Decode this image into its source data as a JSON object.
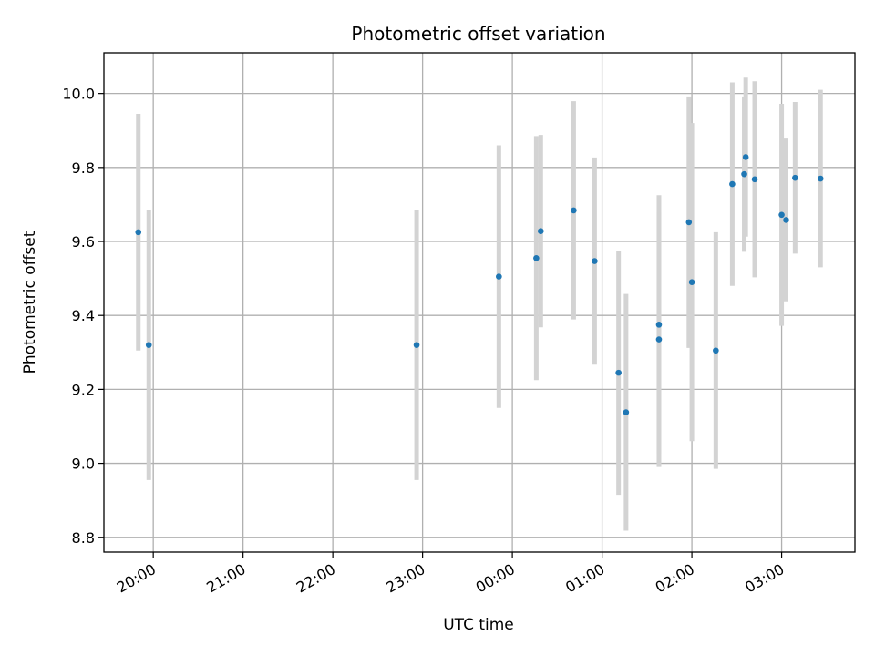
{
  "chart_data": {
    "type": "scatter",
    "title": "Photometric offset variation",
    "xlabel": "UTC time",
    "ylabel": "Photometric offset",
    "grid": true,
    "xlim": [
      "19:27",
      "03:49"
    ],
    "ylim": [
      8.76,
      10.11
    ],
    "x_ticks": [
      "20:00",
      "21:00",
      "22:00",
      "23:00",
      "00:00",
      "01:00",
      "02:00",
      "03:00"
    ],
    "y_ticks": [
      "8.8",
      "9.0",
      "9.2",
      "9.4",
      "9.6",
      "9.8",
      "10.0"
    ],
    "colors": {
      "points": "#1f77b4",
      "error_bars": "#d3d3d3",
      "grid": "#b0b0b0"
    },
    "points": [
      {
        "time": "19:50",
        "y": 9.625,
        "err": 0.32
      },
      {
        "time": "19:57",
        "y": 9.32,
        "err": 0.365
      },
      {
        "time": "22:56",
        "y": 9.32,
        "err": 0.365
      },
      {
        "time": "23:51",
        "y": 9.505,
        "err": 0.355
      },
      {
        "time": "00:16",
        "y": 9.555,
        "err": 0.33
      },
      {
        "time": "00:19",
        "y": 9.628,
        "err": 0.26
      },
      {
        "time": "00:41",
        "y": 9.684,
        "err": 0.295
      },
      {
        "time": "00:55",
        "y": 9.547,
        "err": 0.28
      },
      {
        "time": "01:11",
        "y": 9.245,
        "err": 0.33
      },
      {
        "time": "01:16",
        "y": 9.138,
        "err": 0.32
      },
      {
        "time": "01:38",
        "y": 9.375,
        "err": 0.35
      },
      {
        "time": "01:38",
        "y": 9.335,
        "err": 0.345
      },
      {
        "time": "01:58",
        "y": 9.652,
        "err": 0.34
      },
      {
        "time": "02:00",
        "y": 9.49,
        "err": 0.43
      },
      {
        "time": "02:16",
        "y": 9.305,
        "err": 0.32
      },
      {
        "time": "02:27",
        "y": 9.755,
        "err": 0.275
      },
      {
        "time": "02:35",
        "y": 9.782,
        "err": 0.21
      },
      {
        "time": "02:36",
        "y": 9.828,
        "err": 0.215
      },
      {
        "time": "02:42",
        "y": 9.768,
        "err": 0.265
      },
      {
        "time": "03:00",
        "y": 9.672,
        "err": 0.3
      },
      {
        "time": "03:03",
        "y": 9.658,
        "err": 0.22
      },
      {
        "time": "03:09",
        "y": 9.772,
        "err": 0.205
      },
      {
        "time": "03:26",
        "y": 9.77,
        "err": 0.24
      }
    ]
  }
}
